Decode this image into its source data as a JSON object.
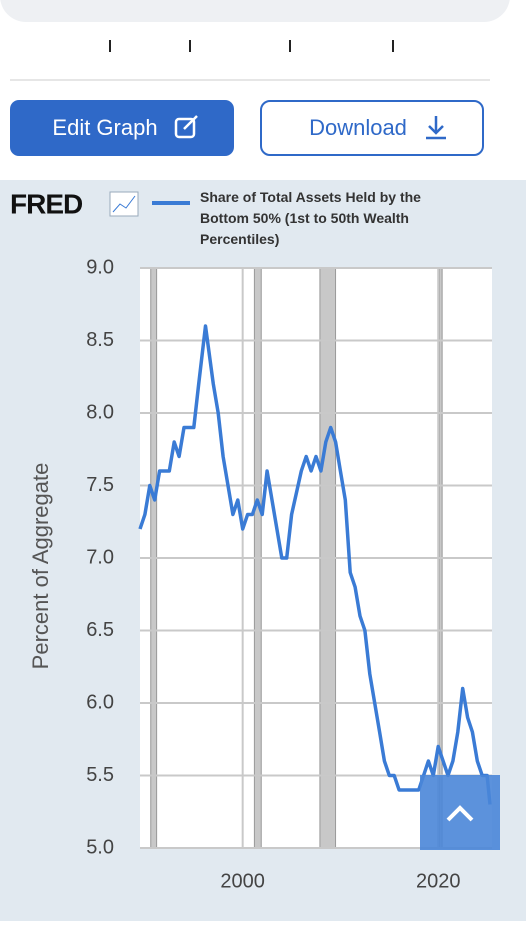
{
  "buttons": {
    "edit": "Edit Graph",
    "download": "Download"
  },
  "logo": "FRED",
  "chart_data": {
    "type": "line",
    "y_label": "Percent of Aggregate",
    "series": [
      {
        "name": "Share of Total Assets Held by the Bottom 50% (1st to 50th Wealth Percentiles)",
        "color": "#3a7bd5",
        "x": [
          1989.5,
          1990,
          1990.5,
          1991,
          1991.5,
          1992.5,
          1993,
          1993.5,
          1994,
          1995,
          1995.5,
          1996.2,
          1997,
          1997.5,
          1998,
          1998.5,
          1999,
          1999.5,
          2000,
          2000.5,
          2001,
          2001.5,
          2002,
          2002.5,
          2003,
          2004,
          2004.5,
          2005,
          2006,
          2006.5,
          2007,
          2007.5,
          2008,
          2008.5,
          2009,
          2009.5,
          2010,
          2010.5,
          2011,
          2011.5,
          2012,
          2012.5,
          2013,
          2013.5,
          2014,
          2014.5,
          2015,
          2015.5,
          2016,
          2016.5,
          2017,
          2017.5,
          2018,
          2018.5,
          2019,
          2019.5,
          2020,
          2020.5,
          2021,
          2021.5,
          2022,
          2022.5,
          2023,
          2023.5,
          2024,
          2024.5,
          2025,
          2025.3
        ],
        "values": [
          7.2,
          7.3,
          7.5,
          7.4,
          7.6,
          7.6,
          7.8,
          7.7,
          7.9,
          7.9,
          8.2,
          8.6,
          8.2,
          8.0,
          7.7,
          7.5,
          7.3,
          7.4,
          7.2,
          7.3,
          7.3,
          7.4,
          7.3,
          7.6,
          7.4,
          7.0,
          7.0,
          7.3,
          7.6,
          7.7,
          7.6,
          7.7,
          7.6,
          7.8,
          7.9,
          7.8,
          7.6,
          7.4,
          6.9,
          6.8,
          6.6,
          6.5,
          6.2,
          6.0,
          5.8,
          5.6,
          5.5,
          5.5,
          5.4,
          5.4,
          5.4,
          5.4,
          5.4,
          5.5,
          5.6,
          5.5,
          5.7,
          5.6,
          5.5,
          5.6,
          5.8,
          6.1,
          5.9,
          5.8,
          5.6,
          5.5,
          5.5,
          5.3
        ]
      }
    ],
    "recessions": [
      [
        1990.6,
        1991.2
      ],
      [
        2001.2,
        2001.9
      ],
      [
        2007.9,
        2009.5
      ],
      [
        2020.1,
        2020.4
      ]
    ],
    "xlim": [
      1989.5,
      2025.5
    ],
    "xticks": [
      2000,
      2020
    ],
    "ylim": [
      5,
      9
    ],
    "yticks": [
      {
        "value": 5,
        "label": "5.0"
      },
      5.5,
      {
        "value": 6,
        "label": "6.0"
      },
      6.5,
      {
        "value": 7,
        "label": "7.0"
      },
      7.5,
      {
        "value": 8,
        "label": "8.0"
      },
      8.5,
      {
        "value": 9,
        "label": "9.0"
      }
    ],
    "grid": true
  }
}
